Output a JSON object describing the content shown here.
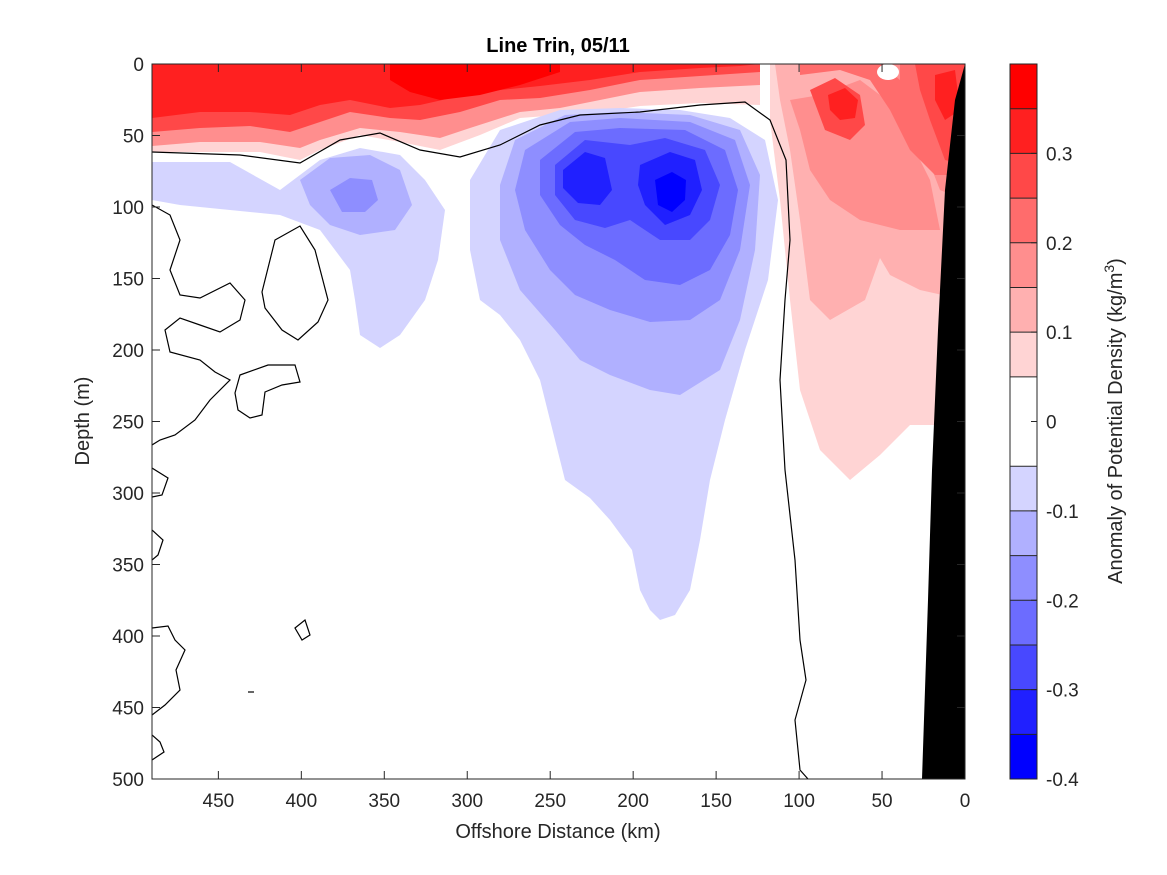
{
  "chart_data": {
    "type": "heatmap",
    "subtype": "filled-contour-section",
    "title": "Line Trin, 05/11",
    "xlabel": "Offshore Distance (km)",
    "ylabel": "Depth (m)",
    "xlim": [
      490,
      0
    ],
    "x_reversed": true,
    "ylim": [
      0,
      500
    ],
    "y_reversed": true,
    "x_ticks": [
      "450",
      "400",
      "350",
      "300",
      "250",
      "200",
      "150",
      "100",
      "50",
      "0"
    ],
    "y_ticks": [
      "0",
      "50",
      "100",
      "150",
      "200",
      "250",
      "300",
      "350",
      "400",
      "450",
      "500"
    ],
    "colorbar": {
      "label_main": "Anomaly of Potential Density (kg/m",
      "label_sup": "3",
      "label_close": ")",
      "range": [
        -0.4,
        0.4
      ],
      "levels": [
        -0.4,
        -0.35,
        -0.3,
        -0.25,
        -0.2,
        -0.15,
        -0.1,
        -0.05,
        0.05,
        0.1,
        0.15,
        0.2,
        0.25,
        0.3,
        0.35,
        0.4
      ],
      "tick_values": [
        0.3,
        0.2,
        0.1,
        0,
        -0.1,
        -0.2,
        -0.3,
        -0.4
      ],
      "tick_labels": [
        "0.3",
        "0.2",
        "0.1",
        "0",
        "-0.1",
        "-0.2",
        "-0.3",
        "-0.4"
      ],
      "colors": [
        "#0000ff",
        "#2020ff",
        "#4848ff",
        "#6c6cff",
        "#8e8eff",
        "#b0b0ff",
        "#d4d4ff",
        "#ffffff",
        "#ffd4d4",
        "#ffb0b0",
        "#ff8e8e",
        "#ff6c6c",
        "#ff4848",
        "#ff2020",
        "#ff0000"
      ]
    },
    "features": [
      {
        "name": "surface-dense-layer",
        "sign": "positive",
        "x_range": [
          490,
          0
        ],
        "depth_range": [
          0,
          60
        ],
        "peak": 0.38
      },
      {
        "name": "offshore-negative-core",
        "sign": "negative",
        "x_center": 365,
        "depth_center": 90,
        "peak": -0.2
      },
      {
        "name": "central-negative-core-west",
        "sign": "negative",
        "x_center": 230,
        "depth_center": 80,
        "peak": -0.3
      },
      {
        "name": "central-negative-core-east",
        "sign": "negative",
        "x_center": 177,
        "depth_center": 90,
        "peak": -0.35
      },
      {
        "name": "nearshore-positive-anomaly",
        "sign": "positive",
        "x_range": [
          110,
          0
        ],
        "depth_range": [
          0,
          290
        ],
        "peak": 0.35
      }
    ],
    "shelf": {
      "color": "#000000",
      "bottom_x": [
        28,
        0
      ],
      "top_x": 0
    }
  }
}
